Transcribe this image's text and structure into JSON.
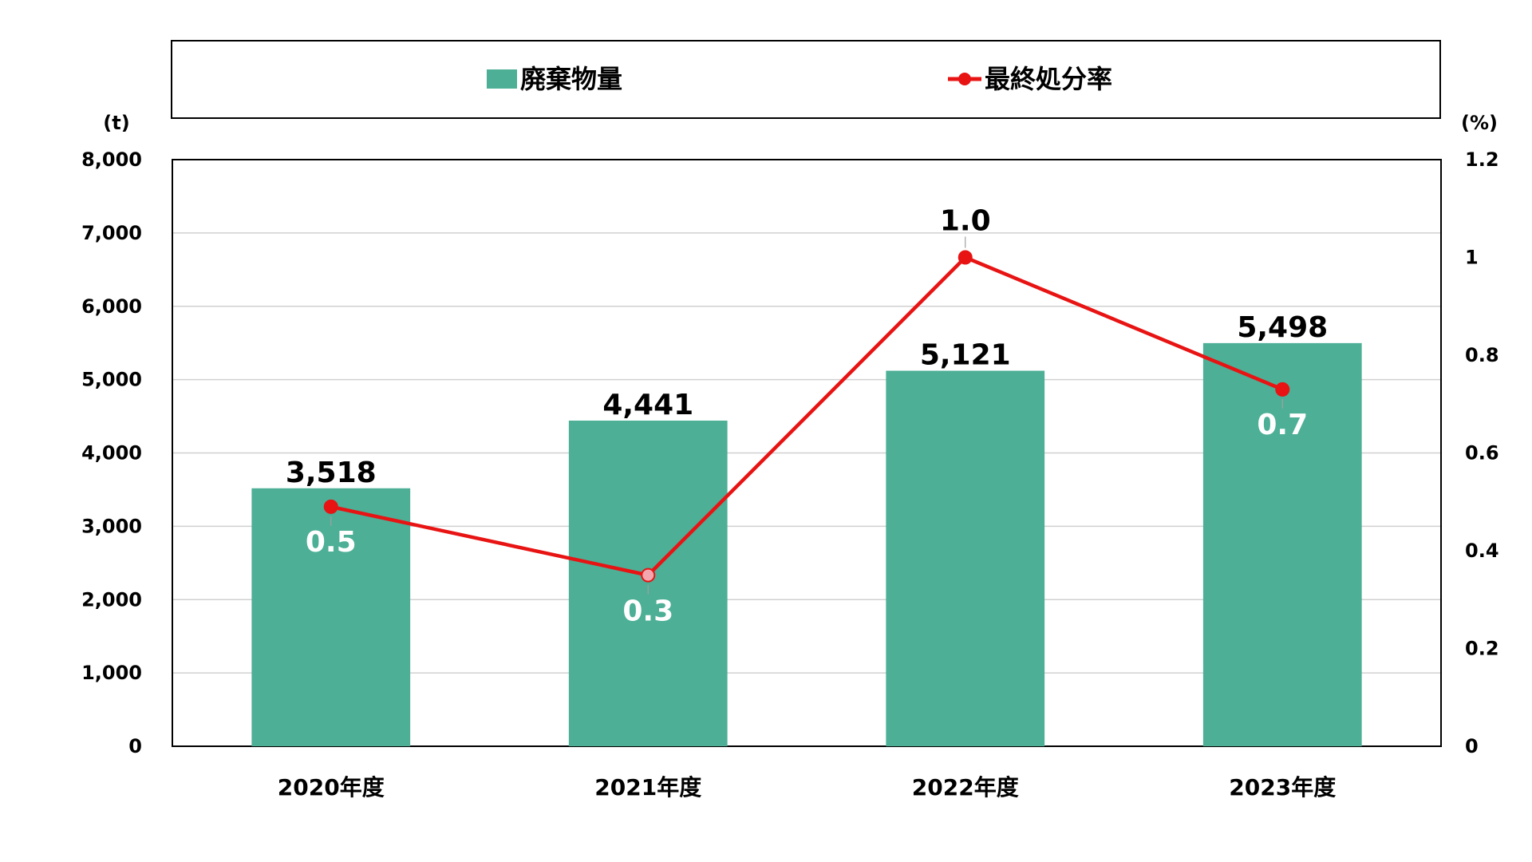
{
  "chart_data": {
    "type": "bar",
    "categories": [
      "2020年度",
      "2021年度",
      "2022年度",
      "2023年度"
    ],
    "series": [
      {
        "name": "廃棄物量",
        "type": "bar",
        "axis": "left",
        "values": [
          3518,
          4441,
          5121,
          5498
        ],
        "labels": [
          "3,518",
          "4,441",
          "5,121",
          "5,498"
        ],
        "color": "#4caf96"
      },
      {
        "name": "最終処分率",
        "type": "line",
        "axis": "right",
        "values": [
          0.49,
          0.35,
          1.0,
          0.73
        ],
        "labels": [
          "0.5",
          "0.3",
          "1.0",
          "0.7"
        ],
        "color": "#e81313"
      }
    ],
    "y_left": {
      "unit": "(t)",
      "ylim": [
        0,
        8000
      ],
      "ticks": [
        "0",
        "1,000",
        "2,000",
        "3,000",
        "4,000",
        "5,000",
        "6,000",
        "7,000",
        "8,000"
      ]
    },
    "y_right": {
      "unit": "(%)",
      "ylim": [
        0,
        1.2
      ],
      "ticks": [
        "0",
        "0.2",
        "0.4",
        "0.6",
        "0.8",
        "1",
        "1.2"
      ]
    },
    "grid": true,
    "legend": "top"
  }
}
